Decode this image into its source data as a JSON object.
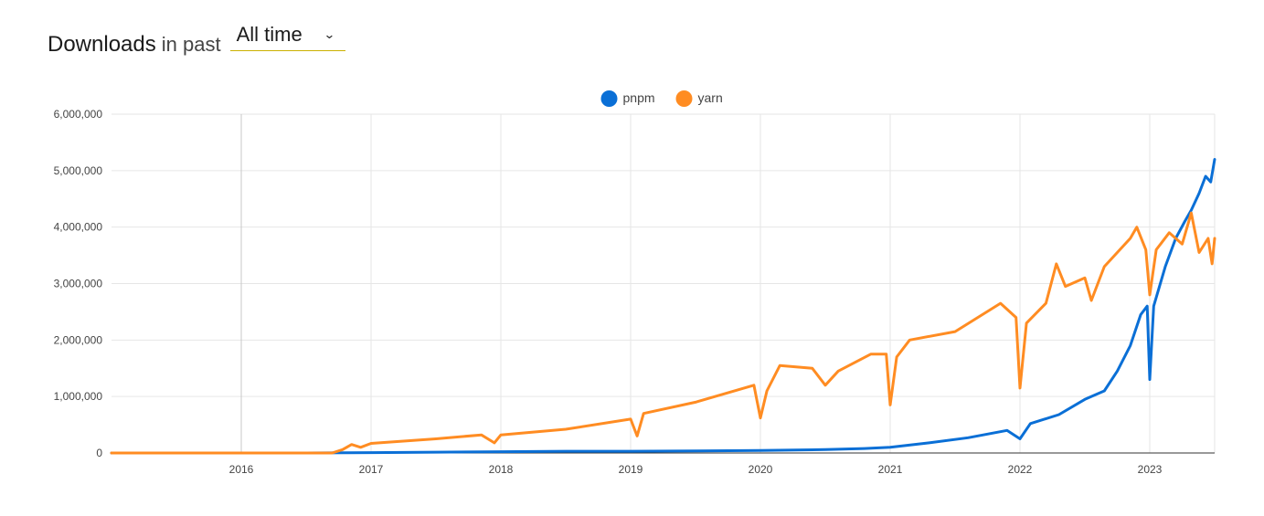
{
  "header": {
    "title": "Downloads",
    "suffix": "in past",
    "period": "All time"
  },
  "icons": {
    "dropdown": "chevron-down-icon"
  },
  "chart_data": {
    "type": "line",
    "grid": true,
    "legend_position": "top-center",
    "xlim": [
      2015.0,
      2023.5
    ],
    "ylim": [
      0,
      6000000
    ],
    "x_ticks": [
      2016,
      2017,
      2018,
      2019,
      2020,
      2021,
      2022,
      2023
    ],
    "x_tick_labels": [
      "2016",
      "2017",
      "2018",
      "2019",
      "2020",
      "2021",
      "2022",
      "2023"
    ],
    "y_ticks": [
      0,
      1000000,
      2000000,
      3000000,
      4000000,
      5000000,
      6000000
    ],
    "y_tick_labels": [
      "0",
      "1,000,000",
      "2,000,000",
      "3,000,000",
      "4,000,000",
      "5,000,000",
      "6,000,000"
    ],
    "series": [
      {
        "name": "pnpm",
        "color": "#0a6fd6",
        "points": [
          [
            2015.0,
            0
          ],
          [
            2016.0,
            0
          ],
          [
            2016.5,
            0
          ],
          [
            2016.8,
            3000
          ],
          [
            2017.0,
            6000
          ],
          [
            2017.5,
            15000
          ],
          [
            2018.0,
            22000
          ],
          [
            2018.5,
            30000
          ],
          [
            2019.0,
            30000
          ],
          [
            2019.5,
            35000
          ],
          [
            2020.0,
            45000
          ],
          [
            2020.5,
            60000
          ],
          [
            2020.8,
            80000
          ],
          [
            2021.0,
            100000
          ],
          [
            2021.3,
            180000
          ],
          [
            2021.6,
            270000
          ],
          [
            2021.9,
            400000
          ],
          [
            2022.0,
            250000
          ],
          [
            2022.08,
            520000
          ],
          [
            2022.3,
            680000
          ],
          [
            2022.5,
            950000
          ],
          [
            2022.65,
            1100000
          ],
          [
            2022.75,
            1450000
          ],
          [
            2022.85,
            1900000
          ],
          [
            2022.93,
            2450000
          ],
          [
            2022.98,
            2600000
          ],
          [
            2023.0,
            1300000
          ],
          [
            2023.03,
            2600000
          ],
          [
            2023.12,
            3300000
          ],
          [
            2023.2,
            3800000
          ],
          [
            2023.27,
            4100000
          ],
          [
            2023.32,
            4300000
          ],
          [
            2023.38,
            4600000
          ],
          [
            2023.43,
            4900000
          ],
          [
            2023.47,
            4800000
          ],
          [
            2023.5,
            5200000
          ]
        ]
      },
      {
        "name": "yarn",
        "color": "#ff8c22",
        "points": [
          [
            2015.0,
            0
          ],
          [
            2016.0,
            0
          ],
          [
            2016.7,
            0
          ],
          [
            2016.78,
            60000
          ],
          [
            2016.85,
            150000
          ],
          [
            2016.92,
            100000
          ],
          [
            2017.0,
            170000
          ],
          [
            2017.5,
            250000
          ],
          [
            2017.85,
            320000
          ],
          [
            2017.95,
            180000
          ],
          [
            2018.0,
            320000
          ],
          [
            2018.5,
            420000
          ],
          [
            2019.0,
            600000
          ],
          [
            2019.05,
            300000
          ],
          [
            2019.1,
            700000
          ],
          [
            2019.5,
            900000
          ],
          [
            2019.95,
            1200000
          ],
          [
            2020.0,
            620000
          ],
          [
            2020.05,
            1100000
          ],
          [
            2020.15,
            1550000
          ],
          [
            2020.4,
            1500000
          ],
          [
            2020.5,
            1200000
          ],
          [
            2020.6,
            1450000
          ],
          [
            2020.85,
            1750000
          ],
          [
            2020.97,
            1750000
          ],
          [
            2021.0,
            850000
          ],
          [
            2021.05,
            1700000
          ],
          [
            2021.15,
            2000000
          ],
          [
            2021.5,
            2150000
          ],
          [
            2021.85,
            2650000
          ],
          [
            2021.97,
            2400000
          ],
          [
            2022.0,
            1150000
          ],
          [
            2022.05,
            2300000
          ],
          [
            2022.2,
            2650000
          ],
          [
            2022.28,
            3350000
          ],
          [
            2022.35,
            2950000
          ],
          [
            2022.5,
            3100000
          ],
          [
            2022.55,
            2700000
          ],
          [
            2022.65,
            3300000
          ],
          [
            2022.85,
            3800000
          ],
          [
            2022.9,
            4000000
          ],
          [
            2022.97,
            3600000
          ],
          [
            2023.0,
            2800000
          ],
          [
            2023.05,
            3600000
          ],
          [
            2023.15,
            3900000
          ],
          [
            2023.25,
            3700000
          ],
          [
            2023.32,
            4250000
          ],
          [
            2023.38,
            3550000
          ],
          [
            2023.45,
            3800000
          ],
          [
            2023.48,
            3350000
          ],
          [
            2023.5,
            3800000
          ]
        ]
      }
    ]
  }
}
